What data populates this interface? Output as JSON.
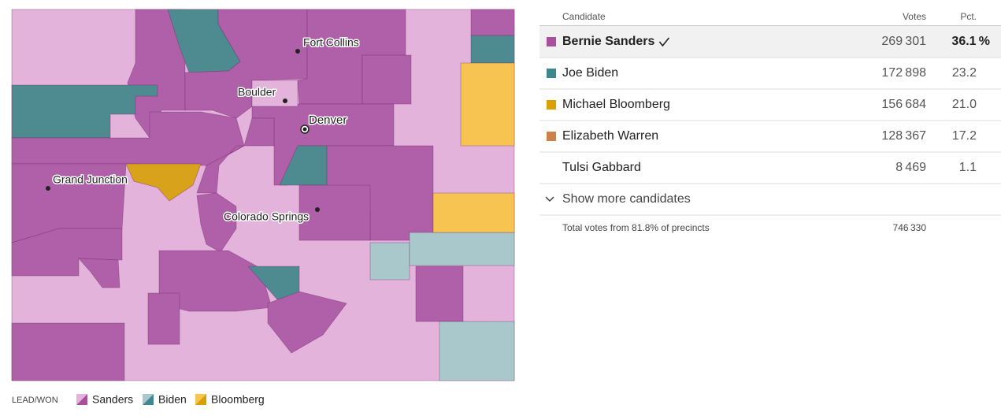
{
  "map": {
    "cities": [
      "Fort Collins",
      "Boulder",
      "Denver",
      "Grand Junction",
      "Colorado Springs"
    ],
    "legend": {
      "title": "LEAD/WON",
      "items": [
        "Sanders",
        "Biden",
        "Bloomberg"
      ]
    }
  },
  "results": {
    "columns": [
      "Candidate",
      "Votes",
      "Pct."
    ],
    "rows": [
      [
        "Bernie Sanders",
        "269 301",
        "36.1 %"
      ],
      [
        "Joe Biden",
        "172 898",
        "23.2"
      ],
      [
        "Michael Bloomberg",
        "156 684",
        "21.0"
      ],
      [
        "Elizabeth Warren",
        "128 367",
        "17.2"
      ],
      [
        "Tulsi Gabbard",
        "8 469",
        "1.1"
      ]
    ],
    "show_more": "Show more candidates",
    "total": {
      "label": "Total votes from 81.8% of precincts",
      "votes": "746 330"
    }
  }
}
